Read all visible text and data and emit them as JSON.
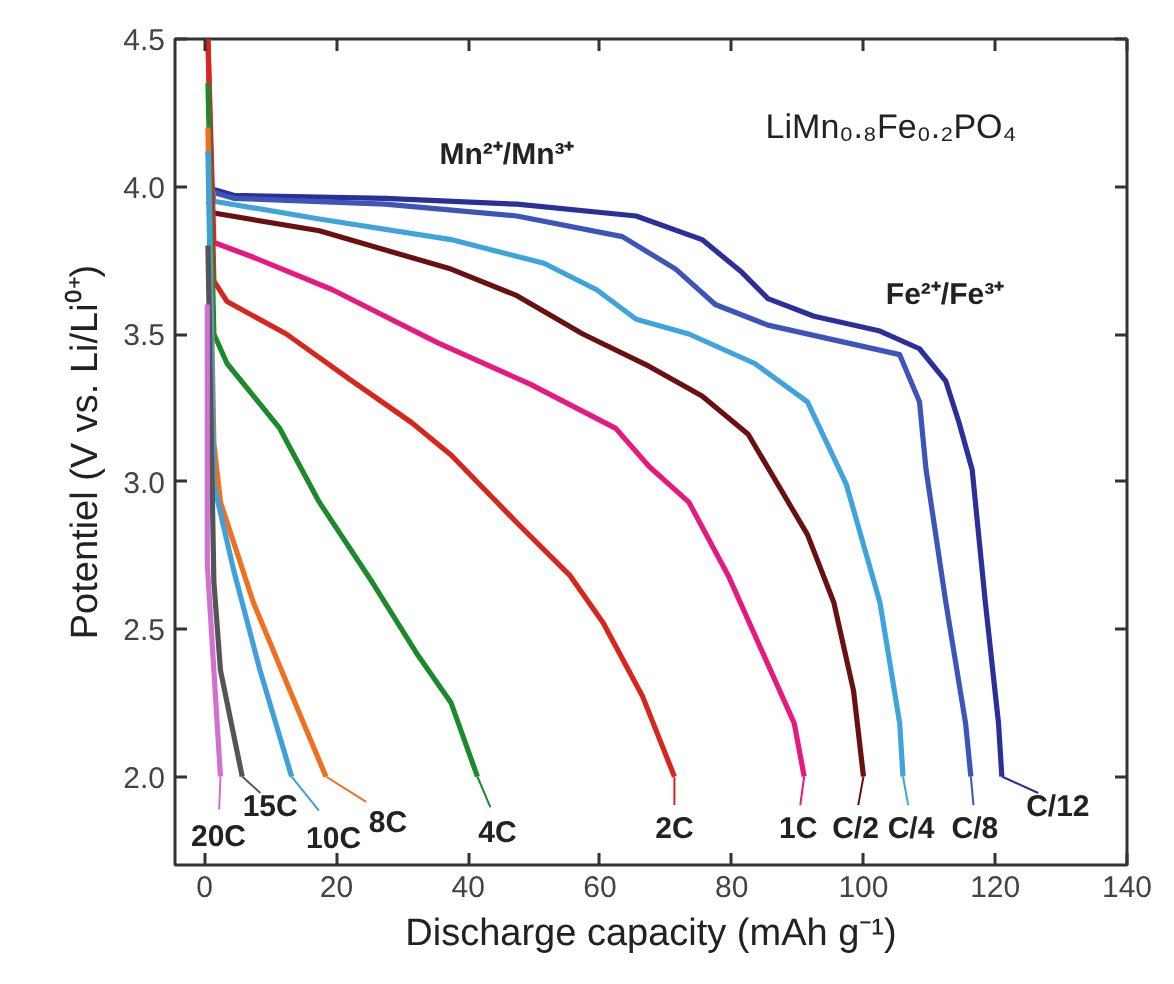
{
  "chart_data": {
    "type": "line",
    "xlabel": "Discharge capacity (mAh g⁻¹)",
    "ylabel": "Potentiel (V vs. Li/Li⁰⁺)",
    "xlim": [
      -4.5,
      140
    ],
    "ylim": [
      1.7,
      4.5
    ],
    "xticks": [
      0,
      20,
      40,
      60,
      80,
      100,
      120,
      140
    ],
    "yticks": [
      {
        "value": 2,
        "label": "2.0"
      },
      {
        "value": 2.5,
        "label": "2.5"
      },
      {
        "value": 3,
        "label": "3.0"
      },
      {
        "value": 3.5,
        "label": "3.5"
      },
      {
        "value": 4,
        "label": "4.0"
      },
      {
        "value": 4.5,
        "label": "4.5"
      }
    ],
    "grid": false,
    "legend": "bottom",
    "marker": "none",
    "line_style": "solid",
    "annotations": [
      "LiMn₀.₈Fe₀.₂PO₄",
      "Mn²⁺/Mn³⁺",
      "Fe²⁺/Fe³⁺"
    ],
    "series": [
      {
        "name": "C/12",
        "color": "#2b2f9a",
        "x": [
          0.6,
          1.4,
          4.4,
          27.4,
          47.4,
          65.5,
          75.5,
          81.5,
          85.5,
          92.5,
          102.5,
          108.5,
          112.5,
          114.5,
          116.5,
          118.5,
          120.5,
          121
        ],
        "values": [
          4.0,
          3.99,
          3.97,
          3.96,
          3.94,
          3.9,
          3.82,
          3.71,
          3.62,
          3.56,
          3.51,
          3.45,
          3.34,
          3.2,
          3.04,
          2.59,
          2.18,
          2.0
        ]
      },
      {
        "name": "C/8",
        "color": "#3d55b8",
        "x": [
          0.6,
          1.4,
          4.4,
          27.4,
          47.4,
          63.4,
          71.5,
          77.5,
          85.5,
          95.5,
          105.5,
          108.5,
          109.5,
          112.5,
          115.5,
          116.3
        ],
        "values": [
          4.0,
          3.98,
          3.96,
          3.94,
          3.9,
          3.83,
          3.72,
          3.6,
          3.53,
          3.48,
          3.43,
          3.27,
          3.04,
          2.59,
          2.18,
          2.0
        ]
      },
      {
        "name": "C/4",
        "color": "#3fa4dc",
        "x": [
          0.5,
          1.4,
          17.4,
          37.4,
          51.5,
          59.5,
          65.5,
          73.5,
          83.5,
          91.5,
          97.4,
          102.5,
          105.5,
          106
        ],
        "values": [
          4.12,
          3.95,
          3.89,
          3.82,
          3.74,
          3.65,
          3.55,
          3.5,
          3.4,
          3.27,
          2.99,
          2.59,
          2.18,
          2.0
        ]
      },
      {
        "name": "C/2",
        "color": "#6b1010",
        "x": [
          0.5,
          1.4,
          17.4,
          37.4,
          47.4,
          57.4,
          67.5,
          75.5,
          82.5,
          91.5,
          95.5,
          98.5,
          100
        ],
        "values": [
          3.95,
          3.91,
          3.85,
          3.72,
          3.63,
          3.5,
          3.39,
          3.29,
          3.16,
          2.82,
          2.59,
          2.29,
          2.0
        ]
      },
      {
        "name": "1C",
        "color": "#e8197e",
        "x": [
          0.5,
          1.4,
          7.4,
          19.4,
          35.4,
          49.4,
          62.4,
          67.5,
          73.5,
          79.5,
          85.5,
          89.5,
          91
        ],
        "values": [
          4.5,
          3.81,
          3.76,
          3.65,
          3.47,
          3.33,
          3.18,
          3.05,
          2.93,
          2.68,
          2.38,
          2.18,
          2.0
        ]
      },
      {
        "name": "2C",
        "color": "#d7261e",
        "x": [
          0.5,
          1.4,
          3.4,
          12.4,
          22.4,
          31.4,
          37.4,
          47.4,
          55.5,
          60.5,
          66.5,
          71.3
        ],
        "values": [
          4.5,
          3.68,
          3.61,
          3.5,
          3.34,
          3.2,
          3.09,
          2.86,
          2.68,
          2.52,
          2.27,
          2.0
        ]
      },
      {
        "name": "4C",
        "color": "#1a8a2a",
        "x": [
          0.5,
          1.4,
          3.4,
          7.4,
          11.4,
          17.4,
          25.4,
          32.4,
          37.4,
          41.4
        ],
        "values": [
          4.35,
          3.5,
          3.4,
          3.29,
          3.18,
          2.93,
          2.66,
          2.41,
          2.25,
          2.0
        ]
      },
      {
        "name": "8C",
        "color": "#f07020",
        "x": [
          0.5,
          1.4,
          2.4,
          7.4,
          12.4,
          18.4
        ],
        "values": [
          4.2,
          3.13,
          2.93,
          2.59,
          2.32,
          2.0
        ]
      },
      {
        "name": "10C",
        "color": "#3fa0dc",
        "x": [
          0.5,
          1.4,
          4.4,
          8.4,
          13.2
        ],
        "values": [
          4.12,
          2.99,
          2.7,
          2.36,
          2.0
        ]
      },
      {
        "name": "15C",
        "color": "#555555",
        "x": [
          0.5,
          1.4,
          2.4,
          5.7
        ],
        "values": [
          3.8,
          2.66,
          2.36,
          2.0
        ]
      },
      {
        "name": "20C",
        "color": "#d070d0",
        "x": [
          0.4,
          0.4,
          2.4
        ],
        "values": [
          3.6,
          2.72,
          2.0
        ]
      }
    ]
  }
}
